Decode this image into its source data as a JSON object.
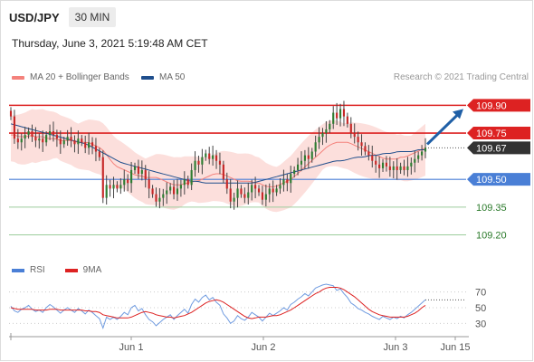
{
  "header": {
    "symbol": "USD/JPY",
    "interval": "30 MIN"
  },
  "datetime": "Thursday, June 3, 2021 5:19:48 AM CET",
  "legend": [
    {
      "label": "MA 20 + Bollinger Bands",
      "color": "#f4827c"
    },
    {
      "label": "MA 50",
      "color": "#1f4e8c"
    }
  ],
  "copyright": "Research © 2021 Trading Central",
  "rsi_legend": [
    {
      "label": "RSI",
      "color": "#4a7fd6"
    },
    {
      "label": "9MA",
      "color": "#dd2222"
    }
  ],
  "colors": {
    "up": "#2e7d32",
    "down": "#c62828",
    "support": "#4a7fd6",
    "resistance": "#dd2222",
    "target": "#2b7a2b",
    "current": "#333333",
    "arrow": "#1f5fa6"
  },
  "chart_data": [
    {
      "type": "candlestick",
      "title": "USD/JPY 30 MIN",
      "ylim": [
        109.1,
        109.98
      ],
      "x_ticks": [
        "Jun 1",
        "Jun 2",
        "Jun 3",
        "Jun 15"
      ],
      "close": [
        109.84,
        109.72,
        109.7,
        109.72,
        109.74,
        109.76,
        109.73,
        109.71,
        109.72,
        109.7,
        109.74,
        109.76,
        109.74,
        109.72,
        109.69,
        109.71,
        109.73,
        109.71,
        109.69,
        109.72,
        109.7,
        109.67,
        109.7,
        109.68,
        109.65,
        109.62,
        109.4,
        109.47,
        109.45,
        109.47,
        109.45,
        109.47,
        109.5,
        109.48,
        109.55,
        109.57,
        109.53,
        109.55,
        109.5,
        109.45,
        109.42,
        109.38,
        109.4,
        109.42,
        109.44,
        109.46,
        109.42,
        109.45,
        109.47,
        109.5,
        109.47,
        109.55,
        109.6,
        109.58,
        109.62,
        109.64,
        109.61,
        109.63,
        109.6,
        109.58,
        109.5,
        109.45,
        109.38,
        109.4,
        109.45,
        109.42,
        109.4,
        109.43,
        109.47,
        109.45,
        109.43,
        109.39,
        109.42,
        109.45,
        109.43,
        109.45,
        109.47,
        109.5,
        109.48,
        109.53,
        109.55,
        109.58,
        109.6,
        109.63,
        109.61,
        109.65,
        109.7,
        109.73,
        109.75,
        109.77,
        109.8,
        109.86,
        109.83,
        109.88,
        109.84,
        109.8,
        109.75,
        109.73,
        109.7,
        109.68,
        109.65,
        109.63,
        109.6,
        109.58,
        109.56,
        109.59,
        109.57,
        109.55,
        109.57,
        109.55,
        109.57,
        109.55,
        109.57,
        109.59,
        109.61,
        109.63,
        109.65,
        109.67
      ],
      "moving_averages": {
        "MA 20": [
          109.74,
          109.74,
          109.73,
          109.73,
          109.73,
          109.74,
          109.73,
          109.73,
          109.73,
          109.72,
          109.72,
          109.72,
          109.71,
          109.71,
          109.71,
          109.71,
          109.7,
          109.7,
          109.7,
          109.7,
          109.69,
          109.68,
          109.67,
          109.65,
          109.62,
          109.59,
          109.57,
          109.56,
          109.55,
          109.54,
          109.53,
          109.52,
          109.52,
          109.51,
          109.51,
          109.51,
          109.51,
          109.5,
          109.49,
          109.48,
          109.47,
          109.47,
          109.47,
          109.48,
          109.48,
          109.49,
          109.49,
          109.5,
          109.51,
          109.52,
          109.53,
          109.53,
          109.53,
          109.52,
          109.51,
          109.5,
          109.49,
          109.49,
          109.49,
          109.49,
          109.48,
          109.48,
          109.47,
          109.46,
          109.46,
          109.46,
          109.47,
          109.48,
          109.49,
          109.5,
          109.52,
          109.54,
          109.56,
          109.58,
          109.6,
          109.62,
          109.64,
          109.66,
          109.68,
          109.69,
          109.7,
          109.7,
          109.7,
          109.7,
          109.69,
          109.68,
          109.67,
          109.66,
          109.65,
          109.64,
          109.63,
          109.62,
          109.61,
          109.61,
          109.61,
          109.61,
          109.62,
          109.62,
          109.63,
          109.64,
          109.65,
          109.66,
          109.67
        ],
        "MA 50": [
          109.8,
          109.79,
          109.78,
          109.77,
          109.76,
          109.75,
          109.74,
          109.73,
          109.72,
          109.71,
          109.7,
          109.69,
          109.67,
          109.65,
          109.63,
          109.61,
          109.59,
          109.58,
          109.57,
          109.56,
          109.55,
          109.54,
          109.53,
          109.52,
          109.51,
          109.5,
          109.49,
          109.49,
          109.48,
          109.48,
          109.48,
          109.48,
          109.48,
          109.48,
          109.48,
          109.48,
          109.49,
          109.5,
          109.51,
          109.52,
          109.53,
          109.54,
          109.55,
          109.56,
          109.57,
          109.58,
          109.59,
          109.6,
          109.6,
          109.61,
          109.62,
          109.62,
          109.63,
          109.63,
          109.64,
          109.64,
          109.65,
          109.65,
          109.65,
          109.66,
          109.66
        ]
      },
      "levels": [
        {
          "value": 109.9,
          "label": "109.90",
          "kind": "resistance"
        },
        {
          "value": 109.75,
          "label": "109.75",
          "kind": "resistance"
        },
        {
          "value": 109.67,
          "label": "109.67",
          "kind": "current"
        },
        {
          "value": 109.5,
          "label": "109.50",
          "kind": "support"
        },
        {
          "value": 109.35,
          "label": "109.35",
          "kind": "target"
        },
        {
          "value": 109.2,
          "label": "109.20",
          "kind": "target"
        }
      ],
      "arrow": {
        "from": 109.67,
        "to": 109.9,
        "direction": "up"
      }
    },
    {
      "type": "line",
      "title": "RSI",
      "ylim": [
        20,
        80
      ],
      "y_ticks": [
        30,
        50,
        70
      ],
      "series": [
        {
          "name": "RSI",
          "values": [
            52,
            46,
            44,
            48,
            50,
            53,
            48,
            45,
            47,
            44,
            50,
            54,
            51,
            47,
            43,
            47,
            50,
            47,
            44,
            49,
            46,
            42,
            47,
            44,
            40,
            36,
            24,
            38,
            35,
            38,
            35,
            39,
            44,
            41,
            50,
            53,
            46,
            49,
            41,
            35,
            32,
            27,
            31,
            35,
            38,
            41,
            35,
            40,
            44,
            48,
            43,
            54,
            61,
            57,
            63,
            66,
            60,
            63,
            57,
            53,
            42,
            37,
            30,
            33,
            40,
            36,
            34,
            38,
            44,
            41,
            38,
            33,
            38,
            43,
            40,
            43,
            46,
            50,
            47,
            54,
            57,
            61,
            64,
            68,
            65,
            70,
            75,
            77,
            79,
            80,
            79,
            78,
            72,
            74,
            68,
            63,
            56,
            53,
            49,
            47,
            44,
            42,
            39,
            37,
            35,
            39,
            37,
            35,
            38,
            36,
            39,
            37,
            41,
            44,
            48,
            52,
            56,
            60
          ]
        },
        {
          "name": "9MA",
          "values": [
            50,
            49,
            48,
            48,
            48,
            48,
            48,
            47,
            47,
            47,
            47,
            48,
            48,
            48,
            47,
            47,
            47,
            47,
            47,
            47,
            47,
            46,
            46,
            45,
            45,
            44,
            41,
            40,
            39,
            38,
            37,
            37,
            37,
            37,
            38,
            40,
            42,
            44,
            45,
            44,
            43,
            41,
            40,
            39,
            38,
            38,
            37,
            38,
            39,
            40,
            42,
            44,
            47,
            50,
            53,
            56,
            58,
            59,
            60,
            59,
            57,
            54,
            51,
            48,
            45,
            42,
            39,
            37,
            36,
            37,
            38,
            38,
            38,
            39,
            40,
            40,
            41,
            43,
            45,
            47,
            50,
            53,
            56,
            59,
            62,
            65,
            68,
            70,
            73,
            75,
            76,
            76,
            76,
            75,
            73,
            70,
            67,
            64,
            60,
            56,
            52,
            48,
            45,
            43,
            41,
            40,
            39,
            38,
            38,
            38,
            38,
            38,
            39,
            41,
            43,
            46,
            50,
            53
          ]
        }
      ]
    }
  ]
}
